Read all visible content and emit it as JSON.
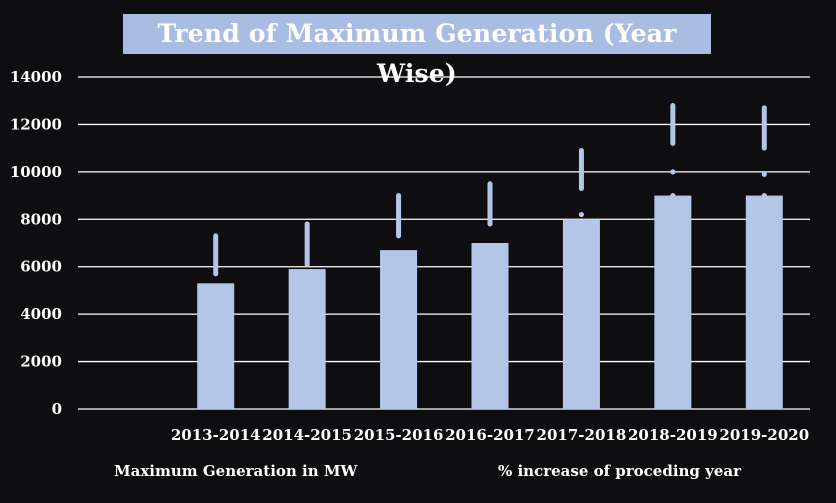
{
  "chart_data": {
    "type": "bar",
    "title": "Trend of Maximum Generation (Year Wise)",
    "categories": [
      "2013-2014",
      "2014-2015",
      "2015-2016",
      "2016-2017",
      "2017-2018",
      "2018-2019",
      "2019-2020"
    ],
    "series": [
      {
        "name": "Maximum Generation in MW",
        "values": [
          5300,
          5900,
          6700,
          7000,
          8000,
          9000,
          9000
        ]
      },
      {
        "name": "% increase of proceding year",
        "values": [
          null,
          null,
          null,
          null,
          null,
          null,
          null
        ]
      }
    ],
    "error_bars": [
      [
        [
          5700,
          7300
        ]
      ],
      [
        [
          6100,
          7800
        ]
      ],
      [
        [
          7300,
          9000
        ]
      ],
      [
        [
          7800,
          9500
        ]
      ],
      [
        [
          8200,
          8200
        ],
        [
          9300,
          10900
        ]
      ],
      [
        [
          9000,
          9000
        ],
        [
          10000,
          10000
        ],
        [
          11200,
          12800
        ]
      ],
      [
        [
          9000,
          9000
        ],
        [
          9900,
          9900
        ],
        [
          11000,
          12700
        ]
      ]
    ],
    "yticks": [
      0,
      2000,
      4000,
      6000,
      8000,
      10000,
      12000,
      14000
    ],
    "ylim": [
      0,
      14000
    ],
    "grid": true,
    "legend": "bottom",
    "colors": {
      "bar": "#b4c6e7",
      "title_bg": "#a9bde3",
      "grid": "#ffffff",
      "text": "#ffffff",
      "background": "#0e0e10"
    }
  }
}
